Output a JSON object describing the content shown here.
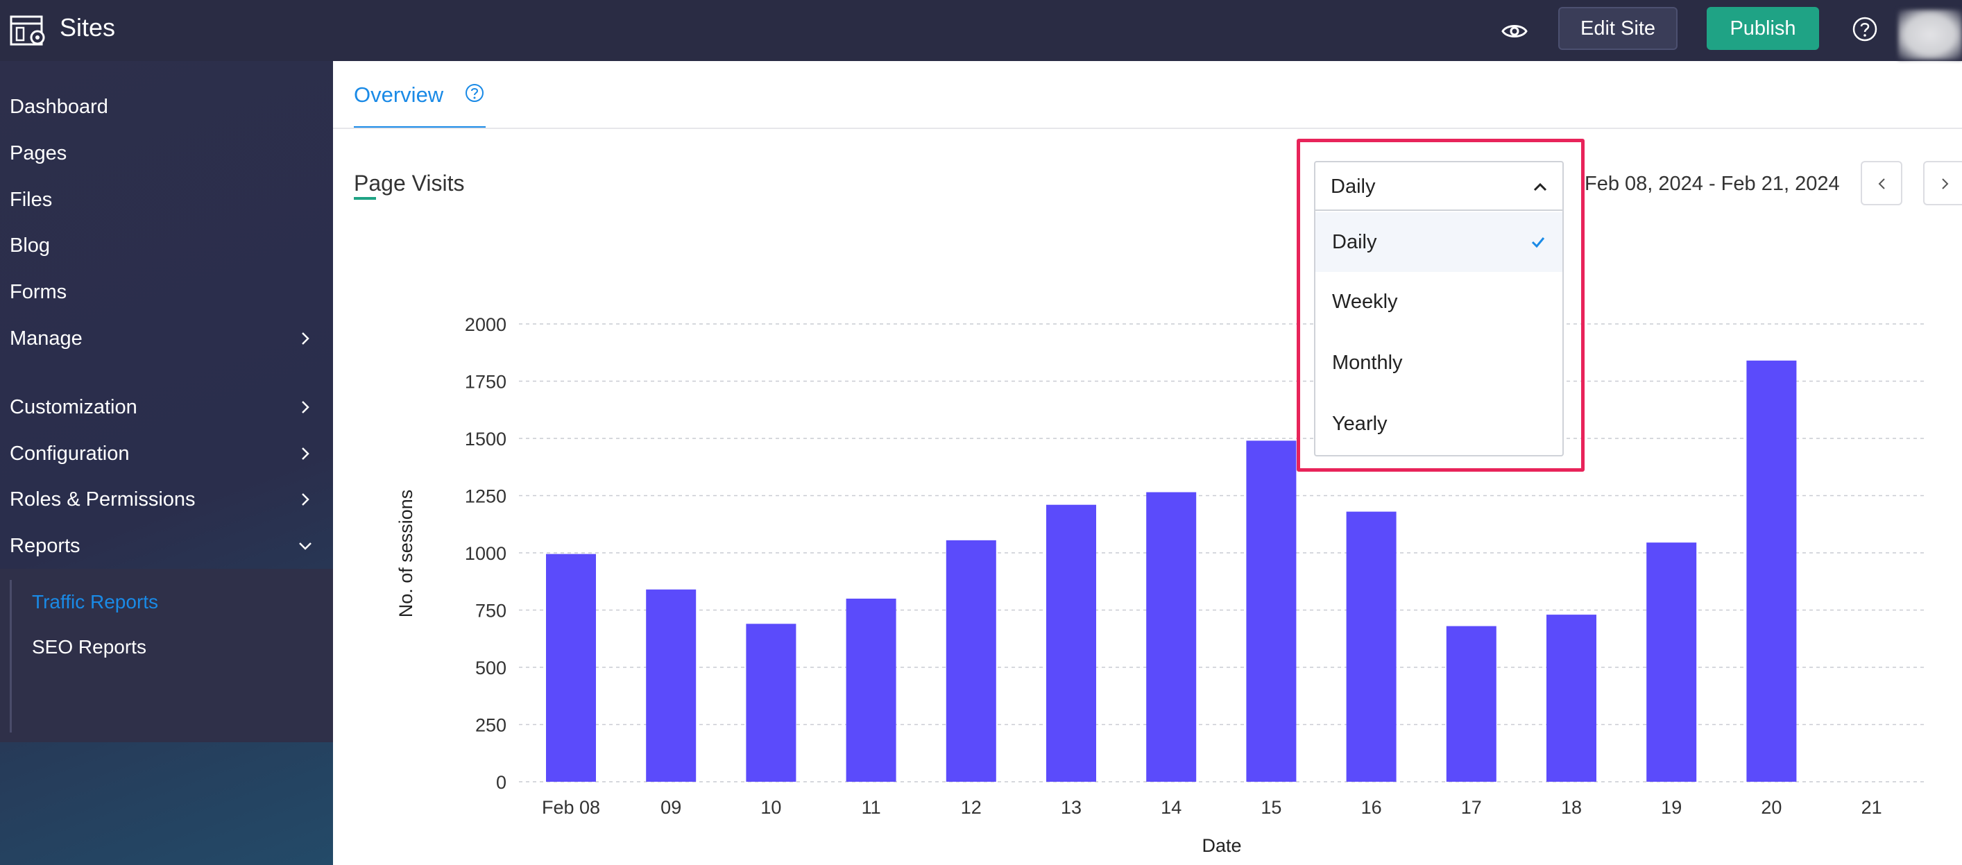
{
  "app": {
    "title": "Sites"
  },
  "topbar": {
    "edit_label": "Edit Site",
    "publish_label": "Publish",
    "publish_color": "#1fa385"
  },
  "sidebar": {
    "items": [
      {
        "label": "Dashboard"
      },
      {
        "label": "Pages"
      },
      {
        "label": "Files"
      },
      {
        "label": "Blog"
      },
      {
        "label": "Forms"
      },
      {
        "label": "Manage",
        "icon": "chevron-right"
      },
      {
        "label": "Customization",
        "icon": "chevron-right"
      },
      {
        "label": "Configuration",
        "icon": "chevron-right"
      },
      {
        "label": "Roles & Permissions",
        "icon": "chevron-right"
      },
      {
        "label": "Reports",
        "icon": "chevron-down"
      }
    ],
    "subitems": [
      {
        "label": "Traffic Reports",
        "active": true
      },
      {
        "label": "SEO Reports",
        "active": false
      }
    ]
  },
  "main": {
    "tab_label": "Overview",
    "section_title": "Page Visits",
    "date_range": "Feb 08, 2024 - Feb 21, 2024"
  },
  "dropdown": {
    "selected": "Daily",
    "options": [
      {
        "label": "Daily",
        "selected": true
      },
      {
        "label": "Weekly",
        "selected": false
      },
      {
        "label": "Monthly",
        "selected": false
      },
      {
        "label": "Yearly",
        "selected": false
      }
    ]
  },
  "colors": {
    "accent": "#1a8ae6",
    "bar": "#5b4bfb",
    "highlight": "#e8245a",
    "sidebar": "#2a2c44"
  },
  "chart_data": {
    "type": "bar",
    "categories": [
      "Feb 08",
      "09",
      "10",
      "11",
      "12",
      "13",
      "14",
      "15",
      "16",
      "17",
      "18",
      "19",
      "20",
      "21"
    ],
    "values": [
      995,
      840,
      690,
      800,
      1055,
      1210,
      1265,
      1490,
      1180,
      680,
      730,
      1045,
      1840,
      null
    ],
    "xlabel": "Date",
    "ylabel": "No. of sessions",
    "ylim": [
      0,
      2000
    ],
    "yticks": [
      0,
      250,
      500,
      750,
      1000,
      1250,
      1500,
      1750,
      2000
    ],
    "grid": true
  }
}
